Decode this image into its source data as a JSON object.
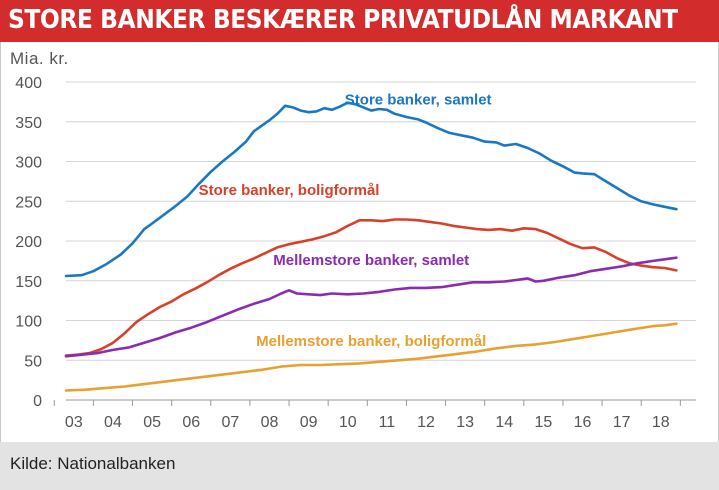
{
  "header": {
    "title": "STORE BANKER BESKÆRER PRIVATUDLÅN MARKANT"
  },
  "chart_data": {
    "type": "line",
    "title": "STORE BANKER BESKÆRER PRIVATUDLÅN MARKANT",
    "ylabel": "Mia. kr.",
    "ylim": [
      0,
      400
    ],
    "yticks": [
      0,
      50,
      100,
      150,
      200,
      250,
      300,
      350,
      400
    ],
    "xlim": [
      2002.8,
      2018.9
    ],
    "xticks": [
      {
        "value": 2003,
        "label": "03"
      },
      {
        "value": 2004,
        "label": "04"
      },
      {
        "value": 2005,
        "label": "05"
      },
      {
        "value": 2006,
        "label": "06"
      },
      {
        "value": 2007,
        "label": "07"
      },
      {
        "value": 2008,
        "label": "08"
      },
      {
        "value": 2009,
        "label": "09"
      },
      {
        "value": 2010,
        "label": "10"
      },
      {
        "value": 2011,
        "label": "11"
      },
      {
        "value": 2012,
        "label": "12"
      },
      {
        "value": 2013,
        "label": "13"
      },
      {
        "value": 2014,
        "label": "14"
      },
      {
        "value": 2015,
        "label": "15"
      },
      {
        "value": 2016,
        "label": "16"
      },
      {
        "value": 2017,
        "label": "17"
      },
      {
        "value": 2018,
        "label": "18"
      }
    ],
    "grid": "horizontal",
    "series": [
      {
        "name": "Store banker, samlet",
        "color": "#1a78c2",
        "label_x": 2011.8,
        "label_y": 372,
        "points": [
          [
            2002.8,
            156
          ],
          [
            2003.2,
            157
          ],
          [
            2003.5,
            162
          ],
          [
            2003.8,
            170
          ],
          [
            2004.2,
            183
          ],
          [
            2004.5,
            197
          ],
          [
            2004.8,
            215
          ],
          [
            2005.0,
            222
          ],
          [
            2005.3,
            233
          ],
          [
            2005.6,
            244
          ],
          [
            2005.9,
            256
          ],
          [
            2006.2,
            272
          ],
          [
            2006.5,
            287
          ],
          [
            2006.8,
            300
          ],
          [
            2007.1,
            312
          ],
          [
            2007.4,
            325
          ],
          [
            2007.6,
            338
          ],
          [
            2007.8,
            345
          ],
          [
            2008.0,
            352
          ],
          [
            2008.2,
            360
          ],
          [
            2008.4,
            370
          ],
          [
            2008.6,
            368
          ],
          [
            2008.8,
            364
          ],
          [
            2009.0,
            362
          ],
          [
            2009.2,
            363
          ],
          [
            2009.4,
            367
          ],
          [
            2009.6,
            365
          ],
          [
            2009.8,
            369
          ],
          [
            2010.0,
            374
          ],
          [
            2010.2,
            372
          ],
          [
            2010.4,
            368
          ],
          [
            2010.6,
            364
          ],
          [
            2010.8,
            366
          ],
          [
            2011.0,
            365
          ],
          [
            2011.2,
            360
          ],
          [
            2011.5,
            356
          ],
          [
            2011.8,
            353
          ],
          [
            2012.0,
            349
          ],
          [
            2012.3,
            342
          ],
          [
            2012.6,
            336
          ],
          [
            2012.9,
            333
          ],
          [
            2013.2,
            330
          ],
          [
            2013.5,
            325
          ],
          [
            2013.8,
            324
          ],
          [
            2014.0,
            320
          ],
          [
            2014.3,
            322
          ],
          [
            2014.6,
            317
          ],
          [
            2014.9,
            310
          ],
          [
            2015.2,
            301
          ],
          [
            2015.5,
            294
          ],
          [
            2015.8,
            286
          ],
          [
            2016.0,
            285
          ],
          [
            2016.3,
            284
          ],
          [
            2016.6,
            275
          ],
          [
            2016.9,
            266
          ],
          [
            2017.2,
            257
          ],
          [
            2017.5,
            250
          ],
          [
            2017.8,
            246
          ],
          [
            2018.1,
            243
          ],
          [
            2018.4,
            240
          ]
        ]
      },
      {
        "name": "Store banker, boligformål",
        "color": "#d9402b",
        "label_x": 2008.5,
        "label_y": 258,
        "points": [
          [
            2002.8,
            56
          ],
          [
            2003.1,
            57
          ],
          [
            2003.4,
            59
          ],
          [
            2003.7,
            64
          ],
          [
            2004.0,
            72
          ],
          [
            2004.3,
            84
          ],
          [
            2004.6,
            98
          ],
          [
            2004.9,
            108
          ],
          [
            2005.2,
            117
          ],
          [
            2005.5,
            124
          ],
          [
            2005.8,
            133
          ],
          [
            2006.1,
            140
          ],
          [
            2006.4,
            148
          ],
          [
            2006.7,
            157
          ],
          [
            2007.0,
            165
          ],
          [
            2007.3,
            172
          ],
          [
            2007.6,
            178
          ],
          [
            2007.9,
            185
          ],
          [
            2008.2,
            192
          ],
          [
            2008.5,
            196
          ],
          [
            2008.8,
            199
          ],
          [
            2009.1,
            202
          ],
          [
            2009.4,
            206
          ],
          [
            2009.7,
            211
          ],
          [
            2010.0,
            219
          ],
          [
            2010.3,
            226
          ],
          [
            2010.6,
            226
          ],
          [
            2010.9,
            225
          ],
          [
            2011.2,
            227
          ],
          [
            2011.5,
            227
          ],
          [
            2011.8,
            226
          ],
          [
            2012.1,
            224
          ],
          [
            2012.4,
            222
          ],
          [
            2012.7,
            219
          ],
          [
            2013.0,
            217
          ],
          [
            2013.3,
            215
          ],
          [
            2013.6,
            214
          ],
          [
            2013.9,
            215
          ],
          [
            2014.2,
            213
          ],
          [
            2014.5,
            216
          ],
          [
            2014.8,
            215
          ],
          [
            2015.1,
            210
          ],
          [
            2015.4,
            203
          ],
          [
            2015.7,
            196
          ],
          [
            2016.0,
            191
          ],
          [
            2016.3,
            192
          ],
          [
            2016.6,
            186
          ],
          [
            2016.9,
            178
          ],
          [
            2017.2,
            172
          ],
          [
            2017.5,
            169
          ],
          [
            2017.8,
            167
          ],
          [
            2018.1,
            166
          ],
          [
            2018.4,
            163
          ]
        ]
      },
      {
        "name": "Mellemstore banker, samlet",
        "color": "#8a2bb0",
        "label_x": 2010.6,
        "label_y": 170,
        "points": [
          [
            2002.8,
            55
          ],
          [
            2003.2,
            57
          ],
          [
            2003.6,
            59
          ],
          [
            2004.0,
            63
          ],
          [
            2004.4,
            66
          ],
          [
            2004.8,
            72
          ],
          [
            2005.2,
            78
          ],
          [
            2005.6,
            85
          ],
          [
            2006.0,
            91
          ],
          [
            2006.4,
            98
          ],
          [
            2006.8,
            106
          ],
          [
            2007.2,
            114
          ],
          [
            2007.6,
            121
          ],
          [
            2008.0,
            127
          ],
          [
            2008.3,
            134
          ],
          [
            2008.5,
            138
          ],
          [
            2008.7,
            134
          ],
          [
            2009.0,
            133
          ],
          [
            2009.3,
            132
          ],
          [
            2009.6,
            134
          ],
          [
            2010.0,
            133
          ],
          [
            2010.4,
            134
          ],
          [
            2010.8,
            136
          ],
          [
            2011.2,
            139
          ],
          [
            2011.6,
            141
          ],
          [
            2012.0,
            141
          ],
          [
            2012.4,
            142
          ],
          [
            2012.8,
            145
          ],
          [
            2013.2,
            148
          ],
          [
            2013.6,
            148
          ],
          [
            2014.0,
            149
          ],
          [
            2014.3,
            151
          ],
          [
            2014.6,
            153
          ],
          [
            2014.8,
            149
          ],
          [
            2015.0,
            150
          ],
          [
            2015.4,
            154
          ],
          [
            2015.8,
            157
          ],
          [
            2016.2,
            162
          ],
          [
            2016.6,
            165
          ],
          [
            2017.0,
            168
          ],
          [
            2017.4,
            172
          ],
          [
            2017.8,
            175
          ],
          [
            2018.1,
            177
          ],
          [
            2018.4,
            179
          ]
        ]
      },
      {
        "name": "Mellemstore banker, boligformål",
        "color": "#e8a030",
        "label_x": 2010.6,
        "label_y": 68,
        "points": [
          [
            2002.8,
            12
          ],
          [
            2003.3,
            13
          ],
          [
            2003.8,
            15
          ],
          [
            2004.3,
            17
          ],
          [
            2004.8,
            20
          ],
          [
            2005.3,
            23
          ],
          [
            2005.8,
            26
          ],
          [
            2006.3,
            29
          ],
          [
            2006.8,
            32
          ],
          [
            2007.3,
            35
          ],
          [
            2007.8,
            38
          ],
          [
            2008.3,
            42
          ],
          [
            2008.8,
            44
          ],
          [
            2009.3,
            44
          ],
          [
            2009.8,
            45
          ],
          [
            2010.3,
            46
          ],
          [
            2010.8,
            48
          ],
          [
            2011.3,
            50
          ],
          [
            2011.8,
            52
          ],
          [
            2012.3,
            55
          ],
          [
            2012.8,
            58
          ],
          [
            2013.3,
            61
          ],
          [
            2013.8,
            65
          ],
          [
            2014.3,
            68
          ],
          [
            2014.8,
            70
          ],
          [
            2015.3,
            73
          ],
          [
            2015.8,
            77
          ],
          [
            2016.3,
            81
          ],
          [
            2016.8,
            85
          ],
          [
            2017.3,
            89
          ],
          [
            2017.8,
            93
          ],
          [
            2018.1,
            94
          ],
          [
            2018.4,
            96
          ]
        ]
      }
    ]
  },
  "footer": {
    "source": "Kilde: Nationalbanken"
  }
}
